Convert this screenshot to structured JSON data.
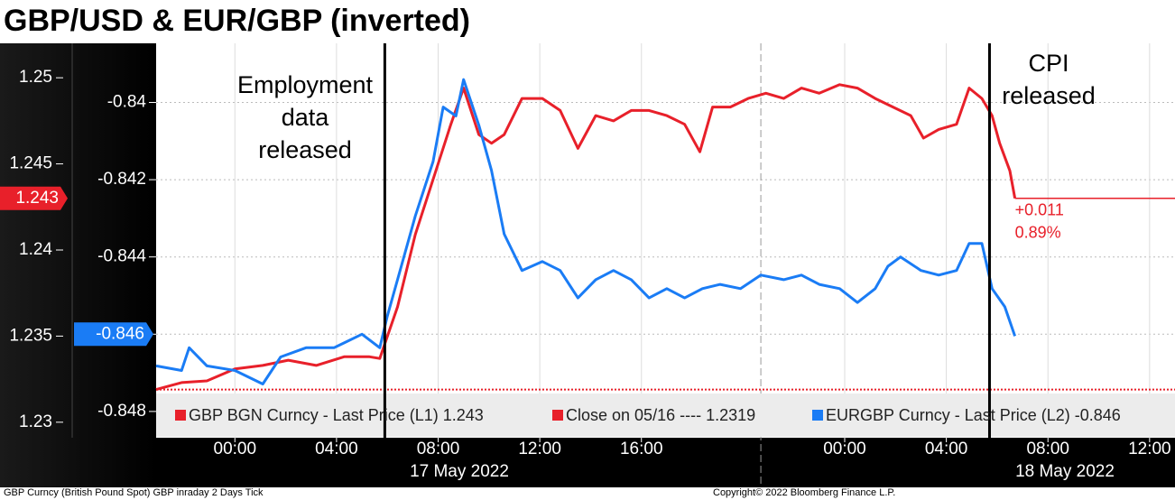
{
  "chart_data": {
    "type": "line",
    "title": "GBP/USD & EUR/GBP (inverted)",
    "xlim": [
      -3.1,
      37
    ],
    "xticks": [
      {
        "value": 0,
        "label": "00:00"
      },
      {
        "value": 4,
        "label": "04:00"
      },
      {
        "value": 8,
        "label": "08:00"
      },
      {
        "value": 12,
        "label": "12:00"
      },
      {
        "value": 16,
        "label": "16:00"
      },
      {
        "value": 24,
        "label": "00:00"
      },
      {
        "value": 28,
        "label": "04:00"
      },
      {
        "value": 32,
        "label": "08:00"
      },
      {
        "value": 36,
        "label": "12:00"
      }
    ],
    "date_labels": [
      "17 May 2022",
      "18 May 2022"
    ],
    "ylim": [
      1.2291,
      1.252
    ],
    "yticks": [
      1.23,
      1.235,
      1.24,
      1.245,
      1.25
    ],
    "y2lim": [
      -0.84868,
      -0.83847
    ],
    "y2ticks": [
      -0.848,
      -0.846,
      -0.844,
      -0.842,
      -0.84
    ],
    "grid": true,
    "session_divider": 20.7,
    "series": [
      {
        "name": "GBP BGN Curncy - Last Price (L1) 1.243",
        "color": "#e8202a",
        "last": 1.243,
        "x": [
          -3.1,
          -2.1,
          -1.1,
          0,
          1.1,
          2.1,
          3.2,
          4.3,
          5.3,
          5.7,
          6.4,
          7.1,
          7.8,
          8.5,
          9.0,
          9.6,
          10.1,
          10.6,
          11.3,
          12.1,
          12.8,
          13.5,
          14.2,
          14.9,
          15.6,
          16.3,
          17.0,
          17.7,
          18.3,
          18.8,
          19.5,
          20.2,
          20.9,
          21.6,
          22.3,
          23.0,
          23.8,
          24.5,
          25.2,
          25.9,
          26.6,
          27.1,
          27.7,
          28.4,
          28.9,
          29.4,
          29.8,
          30.1,
          30.5,
          30.7
        ],
        "values": [
          1.2319,
          1.2323,
          1.2324,
          1.2331,
          1.2333,
          1.2336,
          1.2333,
          1.2338,
          1.2338,
          1.2337,
          1.2367,
          1.2409,
          1.2441,
          1.2473,
          1.2494,
          1.2467,
          1.2462,
          1.2467,
          1.2488,
          1.2488,
          1.2481,
          1.2459,
          1.2478,
          1.2475,
          1.2481,
          1.2481,
          1.2478,
          1.2473,
          1.2457,
          1.2483,
          1.2483,
          1.2488,
          1.2491,
          1.2488,
          1.2494,
          1.2491,
          1.2496,
          1.2494,
          1.2488,
          1.2483,
          1.2478,
          1.2465,
          1.247,
          1.2473,
          1.2494,
          1.2488,
          1.2478,
          1.2462,
          1.2446,
          1.243
        ]
      },
      {
        "name": "EURGBP Curncy - Last Price (L2) -0.846",
        "color": "#1a7cf5",
        "axis": "y2",
        "last": -0.846,
        "x": [
          -3.1,
          -2.1,
          -1.8,
          -1.1,
          0,
          1.1,
          1.8,
          2.8,
          3.9,
          5.0,
          5.7,
          6.0,
          6.4,
          7.1,
          7.8,
          8.2,
          8.7,
          9.0,
          9.6,
          10.1,
          10.6,
          11.3,
          12.1,
          12.8,
          13.5,
          14.2,
          14.9,
          15.6,
          16.3,
          17.0,
          17.7,
          18.4,
          19.1,
          19.9,
          20.7,
          21.6,
          22.3,
          23.0,
          23.8,
          24.5,
          25.2,
          25.7,
          26.2,
          27.0,
          27.7,
          28.4,
          28.9,
          29.4,
          29.8,
          30.3,
          30.7
        ],
        "values": [
          -0.84682,
          -0.84694,
          -0.84635,
          -0.84682,
          -0.84694,
          -0.84729,
          -0.84659,
          -0.84635,
          -0.84635,
          -0.846,
          -0.84635,
          -0.84553,
          -0.84459,
          -0.84294,
          -0.84153,
          -0.84012,
          -0.84035,
          -0.83941,
          -0.84059,
          -0.84176,
          -0.84341,
          -0.84435,
          -0.84412,
          -0.84435,
          -0.84506,
          -0.84459,
          -0.84435,
          -0.84459,
          -0.84506,
          -0.84482,
          -0.84506,
          -0.84482,
          -0.84471,
          -0.84482,
          -0.84447,
          -0.84459,
          -0.84447,
          -0.84471,
          -0.84482,
          -0.84518,
          -0.84482,
          -0.84424,
          -0.844,
          -0.84435,
          -0.84447,
          -0.84435,
          -0.84365,
          -0.84365,
          -0.84482,
          -0.84529,
          -0.84605
        ]
      }
    ],
    "reference": {
      "name": "Close on 05/16 ---- 1.2319",
      "value": 1.2319,
      "color": "#e8202a"
    },
    "events": [
      {
        "x": 5.9,
        "label": [
          "Employment",
          "data",
          "released"
        ]
      },
      {
        "x": 29.7,
        "label": [
          "CPI",
          "released"
        ]
      }
    ],
    "change_labels": [
      "+0.011",
      "0.89%"
    ],
    "footer": {
      "left": "GBP Curncy (British Pound Spot) GBP inraday 2 Days  Tick",
      "right": "Copyright© 2022 Bloomberg Finance L.P."
    }
  }
}
